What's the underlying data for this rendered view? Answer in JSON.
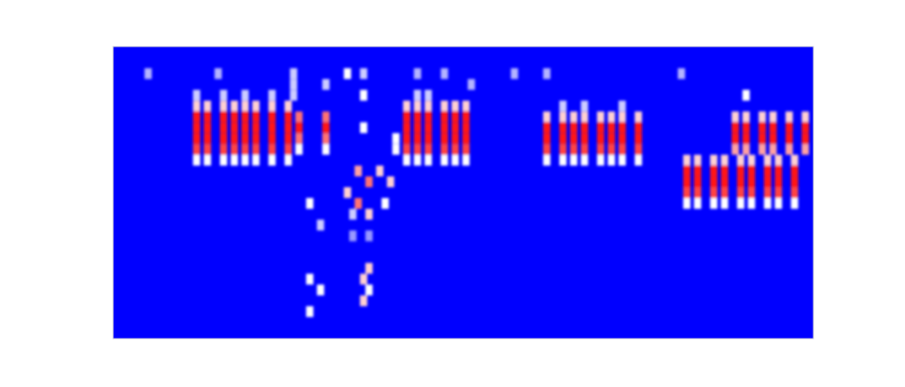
{
  "chart_data": {
    "type": "heatmap",
    "xlim": [
      0,
      130
    ],
    "ylim": [
      0,
      27
    ],
    "tick_labels": false,
    "cells": [
      [
        15,
        21,
        0.6
      ],
      [
        15,
        20,
        1
      ],
      [
        15,
        19,
        1
      ],
      [
        15,
        18,
        1
      ],
      [
        15,
        17,
        0.9
      ],
      [
        15,
        16,
        0.5
      ],
      [
        17,
        21,
        0.6
      ],
      [
        17,
        20,
        1
      ],
      [
        17,
        19,
        1
      ],
      [
        17,
        18,
        1
      ],
      [
        17,
        17,
        0.9
      ],
      [
        17,
        16,
        0.5
      ],
      [
        20,
        21,
        0.6
      ],
      [
        20,
        20,
        1
      ],
      [
        20,
        19,
        1
      ],
      [
        20,
        18,
        1
      ],
      [
        20,
        17,
        0.9
      ],
      [
        20,
        16,
        0.5
      ],
      [
        22,
        21,
        0.6
      ],
      [
        22,
        20,
        1
      ],
      [
        22,
        19,
        1
      ],
      [
        22,
        18,
        1
      ],
      [
        22,
        17,
        0.9
      ],
      [
        22,
        16,
        0.5
      ],
      [
        24,
        21,
        0.6
      ],
      [
        24,
        20,
        1
      ],
      [
        24,
        19,
        1
      ],
      [
        24,
        18,
        1
      ],
      [
        24,
        17,
        0.9
      ],
      [
        24,
        16,
        0.5
      ],
      [
        26,
        21,
        0.6
      ],
      [
        26,
        20,
        1
      ],
      [
        26,
        19,
        1
      ],
      [
        26,
        18,
        1
      ],
      [
        26,
        17,
        0.9
      ],
      [
        26,
        16,
        0.5
      ],
      [
        29,
        21,
        0.6
      ],
      [
        29,
        20,
        1
      ],
      [
        29,
        19,
        1
      ],
      [
        29,
        18,
        1
      ],
      [
        29,
        17,
        0.9
      ],
      [
        29,
        16,
        0.5
      ],
      [
        32,
        21,
        0.6
      ],
      [
        32,
        20,
        1
      ],
      [
        32,
        19,
        1
      ],
      [
        32,
        18,
        1
      ],
      [
        32,
        17,
        0.9
      ],
      [
        32,
        16,
        0.5
      ],
      [
        34,
        20,
        0.8
      ],
      [
        34,
        19,
        1
      ],
      [
        34,
        18,
        0.8
      ],
      [
        34,
        17,
        0.5
      ],
      [
        39,
        20,
        0.8
      ],
      [
        39,
        19,
        1
      ],
      [
        39,
        18,
        0.8
      ],
      [
        39,
        17,
        0.5
      ],
      [
        15,
        22,
        0.4
      ],
      [
        20,
        22,
        0.4
      ],
      [
        24,
        22,
        0.4
      ],
      [
        29,
        22,
        0.4
      ],
      [
        36,
        12,
        0.5
      ],
      [
        38,
        10,
        0.4
      ],
      [
        43,
        13,
        0.6
      ],
      [
        45,
        15,
        0.7
      ],
      [
        47,
        14,
        0.8
      ],
      [
        45,
        12,
        0.8
      ],
      [
        47,
        11,
        0.6
      ],
      [
        49,
        15,
        0.6
      ],
      [
        51,
        14,
        0.6
      ],
      [
        50,
        12,
        0.5
      ],
      [
        46,
        19,
        0.5
      ],
      [
        46,
        22,
        0.5
      ],
      [
        43,
        24,
        0.5
      ],
      [
        46,
        24,
        0.4
      ],
      [
        44,
        11,
        0.4
      ],
      [
        36,
        5,
        0.5
      ],
      [
        36,
        2,
        0.5
      ],
      [
        38,
        4,
        0.5
      ],
      [
        46,
        5,
        0.6
      ],
      [
        47,
        6,
        0.6
      ],
      [
        46,
        3,
        0.6
      ],
      [
        47,
        4,
        0.5
      ],
      [
        44,
        9,
        0.3
      ],
      [
        47,
        9,
        0.3
      ],
      [
        54,
        21,
        0.6
      ],
      [
        54,
        20,
        1
      ],
      [
        54,
        19,
        1
      ],
      [
        54,
        18,
        1
      ],
      [
        54,
        17,
        0.9
      ],
      [
        54,
        16,
        0.5
      ],
      [
        56,
        21,
        0.6
      ],
      [
        56,
        20,
        1
      ],
      [
        56,
        19,
        1
      ],
      [
        56,
        18,
        1
      ],
      [
        56,
        17,
        0.9
      ],
      [
        56,
        16,
        0.5
      ],
      [
        58,
        21,
        0.6
      ],
      [
        58,
        20,
        1
      ],
      [
        58,
        19,
        1
      ],
      [
        58,
        18,
        1
      ],
      [
        58,
        17,
        0.9
      ],
      [
        58,
        16,
        0.5
      ],
      [
        61,
        21,
        0.6
      ],
      [
        61,
        20,
        1
      ],
      [
        61,
        19,
        1
      ],
      [
        61,
        18,
        1
      ],
      [
        61,
        17,
        0.9
      ],
      [
        61,
        16,
        0.5
      ],
      [
        63,
        21,
        0.6
      ],
      [
        63,
        20,
        1
      ],
      [
        63,
        19,
        1
      ],
      [
        63,
        18,
        1
      ],
      [
        63,
        17,
        0.9
      ],
      [
        63,
        16,
        0.5
      ],
      [
        65,
        21,
        0.6
      ],
      [
        65,
        20,
        1
      ],
      [
        65,
        19,
        1
      ],
      [
        65,
        18,
        1
      ],
      [
        65,
        17,
        0.9
      ],
      [
        65,
        16,
        0.5
      ],
      [
        52,
        18,
        0.5
      ],
      [
        52,
        17,
        0.5
      ],
      [
        56,
        22,
        0.4
      ],
      [
        58,
        22,
        0.4
      ],
      [
        80,
        20,
        0.6
      ],
      [
        80,
        19,
        1
      ],
      [
        80,
        18,
        1
      ],
      [
        80,
        17,
        0.9
      ],
      [
        80,
        16,
        0.5
      ],
      [
        83,
        20,
        0.6
      ],
      [
        83,
        19,
        1
      ],
      [
        83,
        18,
        1
      ],
      [
        83,
        17,
        0.9
      ],
      [
        83,
        16,
        0.5
      ],
      [
        85,
        20,
        0.6
      ],
      [
        85,
        19,
        1
      ],
      [
        85,
        18,
        1
      ],
      [
        85,
        17,
        0.9
      ],
      [
        85,
        16,
        0.5
      ],
      [
        87,
        20,
        0.6
      ],
      [
        87,
        19,
        1
      ],
      [
        87,
        18,
        1
      ],
      [
        87,
        17,
        0.9
      ],
      [
        87,
        16,
        0.5
      ],
      [
        90,
        20,
        0.6
      ],
      [
        90,
        19,
        1
      ],
      [
        90,
        18,
        1
      ],
      [
        90,
        17,
        0.9
      ],
      [
        90,
        16,
        0.5
      ],
      [
        92,
        20,
        0.6
      ],
      [
        92,
        19,
        1
      ],
      [
        92,
        18,
        1
      ],
      [
        92,
        17,
        0.9
      ],
      [
        92,
        16,
        0.5
      ],
      [
        94,
        20,
        0.6
      ],
      [
        94,
        19,
        1
      ],
      [
        94,
        18,
        1
      ],
      [
        94,
        17,
        0.9
      ],
      [
        94,
        16,
        0.5
      ],
      [
        97,
        20,
        0.6
      ],
      [
        97,
        19,
        1
      ],
      [
        97,
        18,
        1
      ],
      [
        97,
        17,
        0.9
      ],
      [
        97,
        16,
        0.5
      ],
      [
        83,
        21,
        0.4
      ],
      [
        87,
        21,
        0.4
      ],
      [
        94,
        21,
        0.4
      ],
      [
        115,
        20,
        0.6
      ],
      [
        115,
        19,
        1
      ],
      [
        115,
        18,
        1
      ],
      [
        115,
        17,
        0.7
      ],
      [
        117,
        20,
        0.6
      ],
      [
        117,
        19,
        1
      ],
      [
        117,
        18,
        1
      ],
      [
        117,
        17,
        0.7
      ],
      [
        120,
        20,
        0.6
      ],
      [
        120,
        19,
        1
      ],
      [
        120,
        18,
        1
      ],
      [
        120,
        17,
        0.7
      ],
      [
        122,
        20,
        0.6
      ],
      [
        122,
        19,
        1
      ],
      [
        122,
        18,
        1
      ],
      [
        122,
        17,
        0.7
      ],
      [
        125,
        20,
        0.6
      ],
      [
        125,
        19,
        1
      ],
      [
        125,
        18,
        1
      ],
      [
        125,
        17,
        0.7
      ],
      [
        128,
        20,
        0.6
      ],
      [
        128,
        19,
        1
      ],
      [
        128,
        18,
        1
      ],
      [
        128,
        17,
        0.7
      ],
      [
        117,
        22,
        0.5
      ],
      [
        106,
        16,
        0.6
      ],
      [
        106,
        15,
        1
      ],
      [
        106,
        14,
        1
      ],
      [
        106,
        13,
        0.9
      ],
      [
        106,
        12,
        0.5
      ],
      [
        108,
        16,
        0.6
      ],
      [
        108,
        15,
        1
      ],
      [
        108,
        14,
        1
      ],
      [
        108,
        13,
        0.9
      ],
      [
        108,
        12,
        0.5
      ],
      [
        111,
        16,
        0.6
      ],
      [
        111,
        15,
        1
      ],
      [
        111,
        14,
        1
      ],
      [
        111,
        13,
        0.9
      ],
      [
        111,
        12,
        0.5
      ],
      [
        113,
        16,
        0.6
      ],
      [
        113,
        15,
        1
      ],
      [
        113,
        14,
        1
      ],
      [
        113,
        13,
        0.9
      ],
      [
        113,
        12,
        0.5
      ],
      [
        116,
        16,
        0.6
      ],
      [
        116,
        15,
        1
      ],
      [
        116,
        14,
        1
      ],
      [
        116,
        13,
        0.9
      ],
      [
        116,
        12,
        0.5
      ],
      [
        118,
        16,
        0.6
      ],
      [
        118,
        15,
        1
      ],
      [
        118,
        14,
        1
      ],
      [
        118,
        13,
        0.9
      ],
      [
        118,
        12,
        0.5
      ],
      [
        121,
        16,
        0.6
      ],
      [
        121,
        15,
        1
      ],
      [
        121,
        14,
        1
      ],
      [
        121,
        13,
        0.9
      ],
      [
        121,
        12,
        0.5
      ],
      [
        123,
        16,
        0.6
      ],
      [
        123,
        15,
        1
      ],
      [
        123,
        14,
        1
      ],
      [
        123,
        13,
        0.9
      ],
      [
        123,
        12,
        0.5
      ],
      [
        126,
        16,
        0.6
      ],
      [
        126,
        15,
        1
      ],
      [
        126,
        14,
        1
      ],
      [
        126,
        13,
        0.9
      ],
      [
        126,
        12,
        0.5
      ],
      [
        6,
        24,
        0.35
      ],
      [
        19,
        24,
        0.35
      ],
      [
        33,
        24,
        0.4
      ],
      [
        33,
        23,
        0.4
      ],
      [
        33,
        22,
        0.4
      ],
      [
        39,
        23,
        0.4
      ],
      [
        56,
        24,
        0.35
      ],
      [
        61,
        24,
        0.35
      ],
      [
        66,
        23,
        0.35
      ],
      [
        74,
        24,
        0.35
      ],
      [
        80,
        24,
        0.35
      ],
      [
        105,
        24,
        0.35
      ]
    ]
  }
}
